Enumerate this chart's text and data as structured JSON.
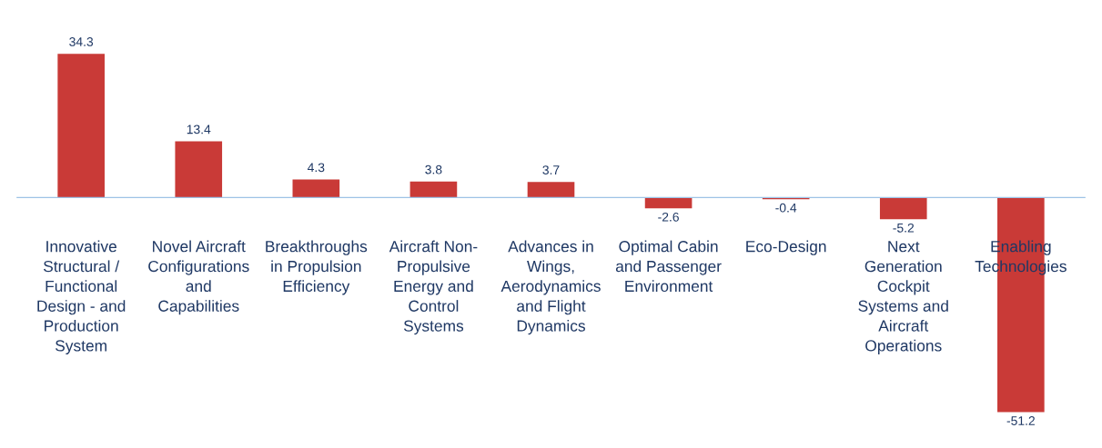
{
  "chart_data": {
    "type": "bar",
    "data_labels": true,
    "grid": false,
    "legend": false,
    "categories": [
      "Innovative\nStructural /\nFunctional\nDesign - and\nProduction\nSystem",
      "Novel Aircraft\nConfigurations\nand\nCapabilities",
      "Breakthroughs\nin Propulsion\nEfficiency",
      "Aircraft Non-\nPropulsive\nEnergy and\nControl\nSystems",
      "Advances in\nWings,\nAerodynamics\nand Flight\nDynamics",
      "Optimal Cabin\nand Passenger\nEnvironment",
      "Eco-Design",
      "Next\nGeneration\nCockpit\nSystems and\nAircraft\nOperations",
      "Enabling\nTechnologies"
    ],
    "values": [
      34.3,
      13.4,
      4.3,
      3.8,
      3.7,
      -2.6,
      -0.4,
      -5.2,
      -51.2
    ],
    "color": "#c93a37",
    "ref_lines": [
      {
        "axis": "y",
        "value": 0,
        "color": "#9dc3e6"
      }
    ]
  }
}
